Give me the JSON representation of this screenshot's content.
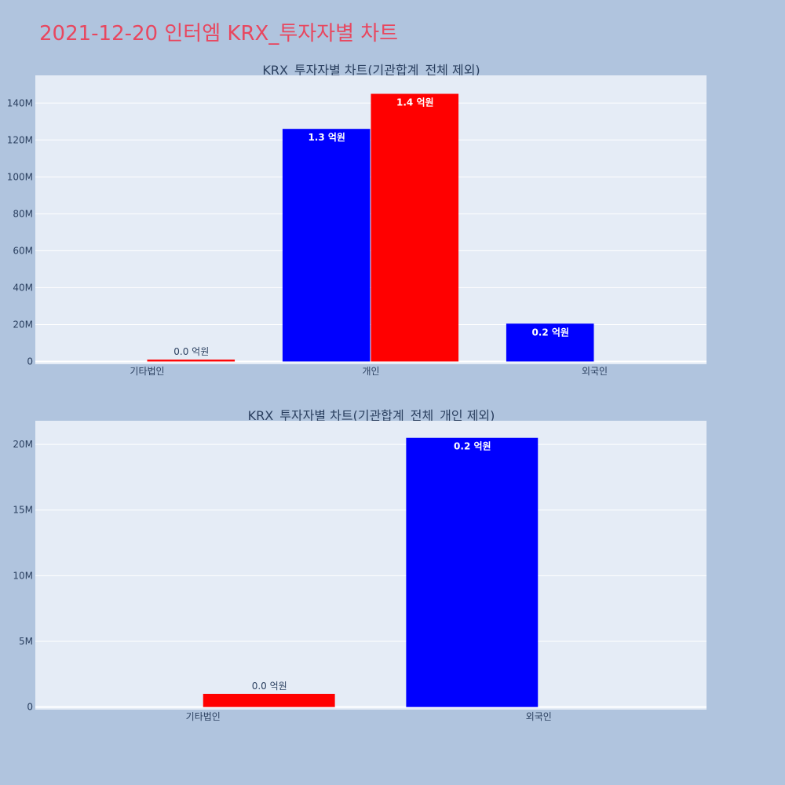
{
  "page_title": "2021-12-20 인터엠 KRX_투자자별 차트",
  "colors": {
    "buy": "#ff0000",
    "sell": "#0000ff",
    "plot_bg": "#e5ecf6",
    "page_bg": "#b0c4de",
    "title": "#e8475f"
  },
  "chart_data": [
    {
      "type": "bar",
      "title": "KRX_투자자별 차트(기관합계_전체 제외)",
      "categories": [
        "기타법인",
        "개인",
        "외국인"
      ],
      "ylim": [
        -1500000,
        155000000
      ],
      "yticks": [
        0,
        20000000,
        40000000,
        60000000,
        80000000,
        100000000,
        120000000,
        140000000
      ],
      "ytick_labels": [
        "0",
        "20M",
        "40M",
        "60M",
        "80M",
        "100M",
        "120M",
        "140M"
      ],
      "grid": true,
      "series": [
        {
          "color": "#0000ff",
          "values": [
            0,
            126000000,
            20500000
          ],
          "labels": [
            "",
            "1.3 억원",
            "0.2 억원"
          ]
        },
        {
          "color": "#ff0000",
          "values": [
            1000000,
            145000000,
            0
          ],
          "labels": [
            "0.0 억원",
            "1.4 억원",
            ""
          ]
        }
      ]
    },
    {
      "type": "bar",
      "title": "KRX_투자자별 차트(기관합계_전체_개인 제외)",
      "categories": [
        "기타법인",
        "외국인"
      ],
      "ylim": [
        -200000,
        21800000
      ],
      "yticks": [
        0,
        5000000,
        10000000,
        15000000,
        20000000
      ],
      "ytick_labels": [
        "0",
        "5M",
        "10M",
        "15M",
        "20M"
      ],
      "grid": true,
      "series": [
        {
          "color": "#0000ff",
          "values": [
            0,
            20500000
          ],
          "labels": [
            "",
            "0.2 억원"
          ]
        },
        {
          "color": "#ff0000",
          "values": [
            1000000,
            0
          ],
          "labels": [
            "0.0 억원",
            ""
          ]
        }
      ]
    }
  ]
}
